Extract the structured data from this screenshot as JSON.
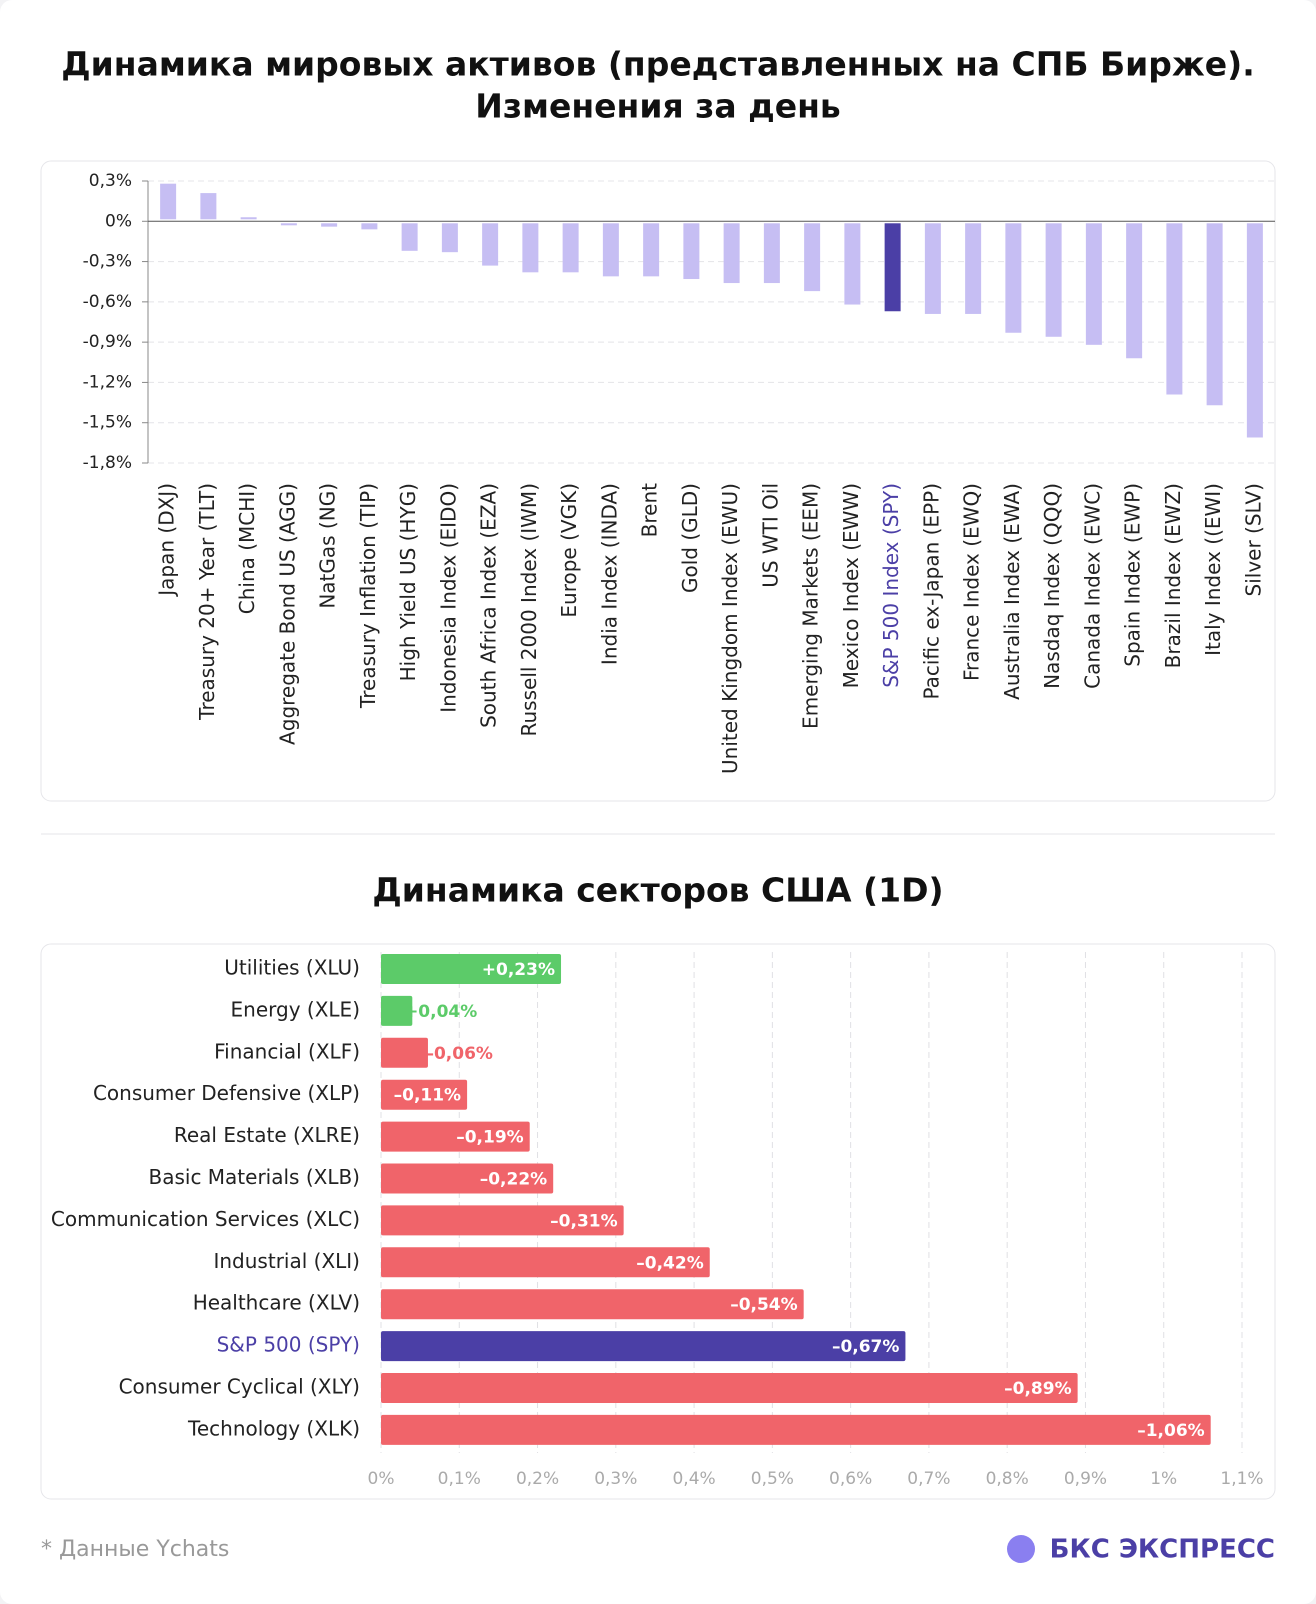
{
  "chart_data": [
    {
      "type": "bar",
      "title": [
        "Динамика мировых активов (представленных на СПБ Бирже).",
        "Изменения за день"
      ],
      "categories": [
        "Japan (DXJ)",
        "Treasury 20+ Year (TLT)",
        "China (MCHI)",
        "Aggregate Bond US (AGG)",
        "NatGas (NG)",
        "Treasury Inflation (TIP)",
        "High Yield US (HYG)",
        "Indonesia Index (EIDO)",
        "South Africa Index (EZA)",
        "Russell 2000 Index (IWM)",
        "Europe (VGK)",
        "India Index (INDA)",
        "Brent",
        "Gold (GLD)",
        "United Kingdom Index (EWU)",
        "US WTI Oil",
        "Emerging Markets (EEM)",
        "Mexico Index (EWW)",
        "S&P 500 Index (SPY)",
        "Pacific ex-Japan (EPP)",
        "France Index (EWQ)",
        "Australia Index (EWA)",
        "Nasdaq Index (QQQ)",
        "Canada Index (EWC)",
        "Spain Index (EWP)",
        "Brazil Index (EWZ)",
        "Italy Index ((EWI)",
        "Silver (SLV)"
      ],
      "values": [
        0.28,
        0.21,
        0.03,
        -0.03,
        -0.04,
        -0.06,
        -0.22,
        -0.23,
        -0.33,
        -0.38,
        -0.38,
        -0.41,
        -0.41,
        -0.43,
        -0.46,
        -0.46,
        -0.52,
        -0.62,
        -0.67,
        -0.69,
        -0.69,
        -0.83,
        -0.86,
        -0.92,
        -1.02,
        -1.29,
        -1.37,
        -1.61
      ],
      "colors": [
        "#c6bef3",
        "#c6bef3",
        "#c6bef3",
        "#c6bef3",
        "#c6bef3",
        "#c6bef3",
        "#c6bef3",
        "#c6bef3",
        "#c6bef3",
        "#c6bef3",
        "#c6bef3",
        "#c6bef3",
        "#c6bef3",
        "#c6bef3",
        "#c6bef3",
        "#c6bef3",
        "#c6bef3",
        "#c6bef3",
        "#4b3fa6",
        "#c6bef3",
        "#c6bef3",
        "#c6bef3",
        "#c6bef3",
        "#c6bef3",
        "#c6bef3",
        "#c6bef3",
        "#c6bef3",
        "#c6bef3"
      ],
      "ylim": [
        0.3,
        -1.8
      ],
      "yticks": [
        {
          "value": 0.3,
          "label": "0,3%"
        },
        {
          "value": 0,
          "label": "0%"
        },
        {
          "value": -0.3,
          "label": "-0,3%"
        },
        {
          "value": -0.6,
          "label": "-0,6%"
        },
        {
          "value": -0.9,
          "label": "-0,9%"
        },
        {
          "value": -1.2,
          "label": "-1,2%"
        },
        {
          "value": -1.5,
          "label": "-1,5%"
        },
        {
          "value": -1.8,
          "label": "-1,8%"
        }
      ],
      "grid": true
    },
    {
      "type": "hbar",
      "title": "Динамика секторов США (1D)",
      "categories": [
        "Utilities (XLU)",
        "Energy (XLE)",
        "Financial (XLF)",
        "Consumer Defensive (XLP)",
        "Real Estate (XLRE)",
        "Basic Materials (XLB)",
        "Communication Services (XLC)",
        "Industrial (XLI)",
        "Healthcare (XLV)",
        "S&P 500 (SPY)",
        "Consumer Cyclical (XLY)",
        "Technology (XLK)"
      ],
      "values": [
        0.23,
        0.04,
        -0.06,
        -0.11,
        -0.19,
        -0.22,
        -0.31,
        -0.42,
        -0.54,
        -0.67,
        -0.89,
        -1.06
      ],
      "value_labels": [
        "+0,23%",
        "+0,04%",
        "–0,06%",
        "–0,11%",
        "–0,19%",
        "–0,22%",
        "–0,31%",
        "–0,42%",
        "–0,54%",
        "–0,67%",
        "–0,89%",
        "–1,06%"
      ],
      "colors": [
        "#5ccb69",
        "#5ccb69",
        "#f0646a",
        "#f0646a",
        "#f0646a",
        "#f0646a",
        "#f0646a",
        "#f0646a",
        "#f0646a",
        "#4b3fa6",
        "#f0646a",
        "#f0646a"
      ],
      "xlim": [
        0,
        1.1
      ],
      "xticks": [
        {
          "value": 0,
          "label": "0%"
        },
        {
          "value": 0.1,
          "label": "0,1%"
        },
        {
          "value": 0.2,
          "label": "0,2%"
        },
        {
          "value": 0.3,
          "label": "0,3%"
        },
        {
          "value": 0.4,
          "label": "0,4%"
        },
        {
          "value": 0.5,
          "label": "0,5%"
        },
        {
          "value": 0.6,
          "label": "0,6%"
        },
        {
          "value": 0.7,
          "label": "0,7%"
        },
        {
          "value": 0.8,
          "label": "0,8%"
        },
        {
          "value": 0.9,
          "label": "0,9%"
        },
        {
          "value": 1,
          "label": "1%"
        },
        {
          "value": 1.1,
          "label": "1,1%"
        }
      ],
      "grid": true
    }
  ],
  "footer": {
    "source": "* Данные Ychats",
    "brand": "БКС ЭКСПРЕСС"
  }
}
